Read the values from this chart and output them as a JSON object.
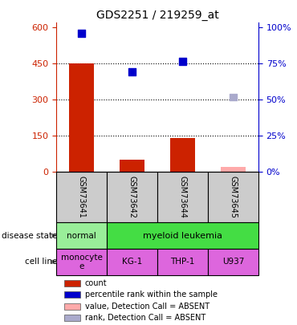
{
  "title": "GDS2251 / 219259_at",
  "samples": [
    "GSM73641",
    "GSM73642",
    "GSM73644",
    "GSM73645"
  ],
  "bar_values": [
    450,
    50,
    140,
    20
  ],
  "bar_colors": [
    "#cc2200",
    "#cc2200",
    "#cc2200",
    "#ffaaaa"
  ],
  "percentile_values": [
    575,
    415,
    460,
    310
  ],
  "percentile_colors": [
    "#0000cc",
    "#0000cc",
    "#0000cc",
    "#aaaacc"
  ],
  "left_yticks": [
    0,
    150,
    300,
    450,
    600
  ],
  "right_yticks_pct": [
    "0%",
    "25%",
    "50%",
    "75%",
    "100%"
  ],
  "right_ytick_vals": [
    0,
    150,
    300,
    450,
    600
  ],
  "ylim": [
    0,
    620
  ],
  "disease_normal_color": "#99ee99",
  "disease_leukemia_color": "#44dd44",
  "cell_line": [
    "monocyte\ne",
    "KG-1",
    "THP-1",
    "U937"
  ],
  "cell_line_color": "#dd66dd",
  "sample_box_color": "#cccccc",
  "bg_color": "#ffffff",
  "left_axis_color": "#cc2200",
  "right_axis_color": "#0000cc",
  "dotted_line_vals": [
    150,
    300,
    450
  ],
  "legend_items": [
    {
      "label": "count",
      "color": "#cc2200"
    },
    {
      "label": "percentile rank within the sample",
      "color": "#0000cc"
    },
    {
      "label": "value, Detection Call = ABSENT",
      "color": "#ffaaaa"
    },
    {
      "label": "rank, Detection Call = ABSENT",
      "color": "#aaaacc"
    }
  ]
}
